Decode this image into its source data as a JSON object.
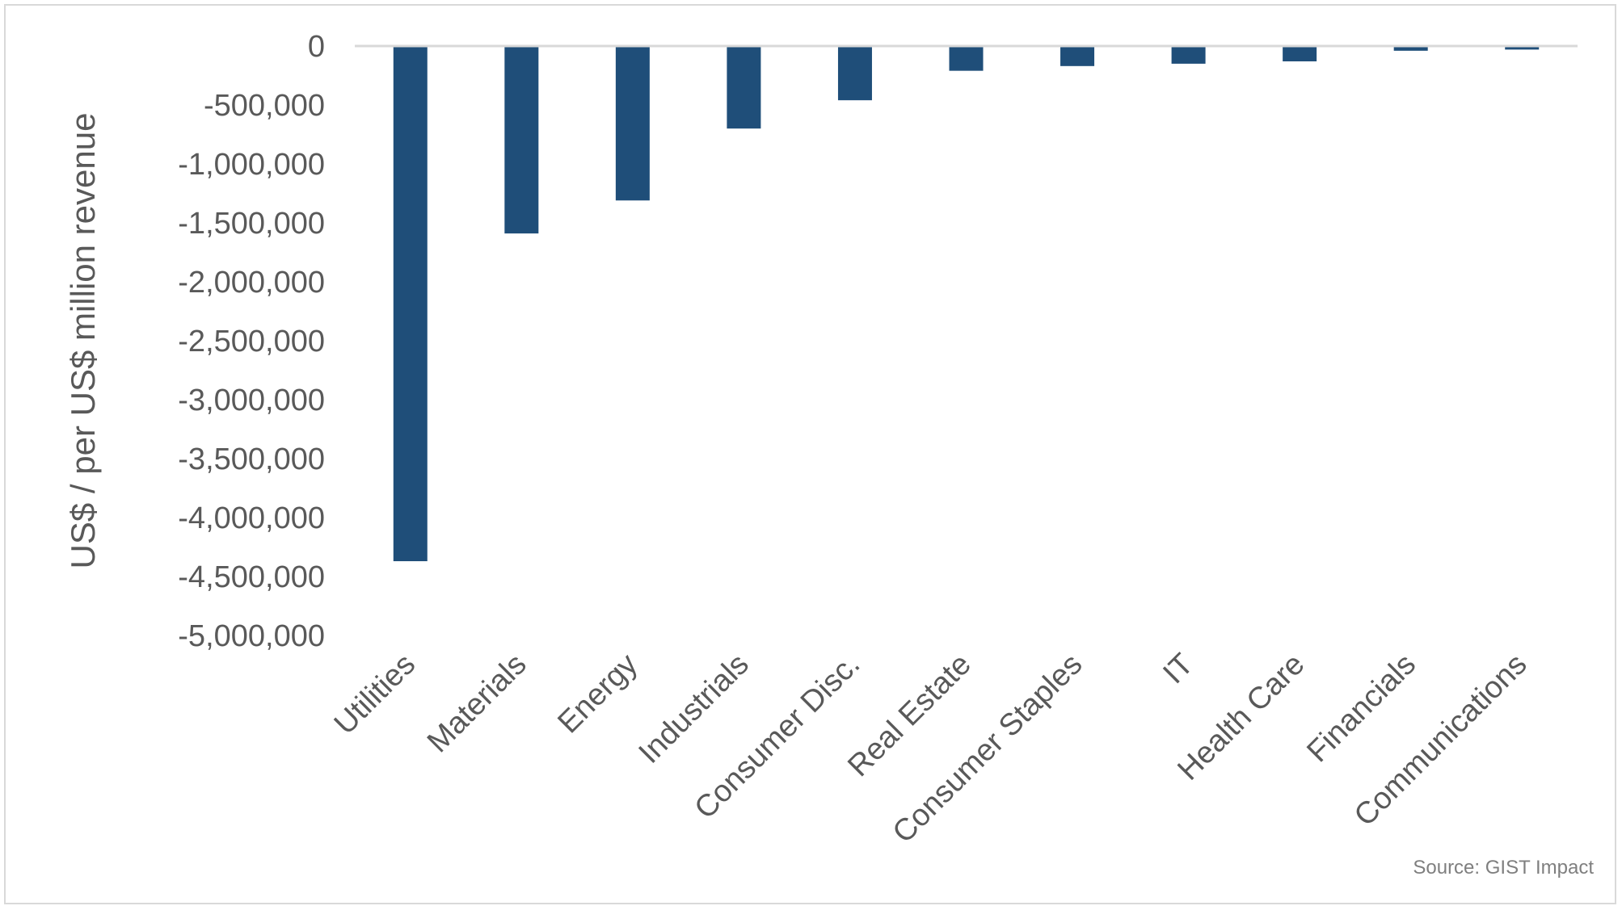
{
  "chart_data": {
    "type": "bar",
    "title": "",
    "xlabel": "",
    "ylabel": "US$ / per US$ million revenue",
    "categories": [
      "Utilities",
      "Materials",
      "Energy",
      "Industrials",
      "Consumer Disc.",
      "Real Estate",
      "Consumer Staples",
      "IT",
      "Health Care",
      "Financials",
      "Communications"
    ],
    "series": [
      {
        "values": [
          -4370000,
          -1590000,
          -1310000,
          -700000,
          -460000,
          -210000,
          -170000,
          -150000,
          -130000,
          -40000,
          -30000
        ]
      }
    ],
    "ylim": [
      -5000000,
      0
    ],
    "yticks": [
      0,
      -500000,
      -1000000,
      -1500000,
      -2000000,
      -2500000,
      -3000000,
      -3500000,
      -4000000,
      -4500000,
      -5000000
    ],
    "ytick_labels": [
      "0",
      "-500,000",
      "-1,000,000",
      "-1,500,000",
      "-2,000,000",
      "-2,500,000",
      "-3,000,000",
      "-3,500,000",
      "-4,000,000",
      "-4,500,000",
      "-5,000,000"
    ],
    "grid": false,
    "bar_color": "#1f4e79",
    "axis_color": "#d9d9d9",
    "source": "Source: GIST Impact"
  }
}
